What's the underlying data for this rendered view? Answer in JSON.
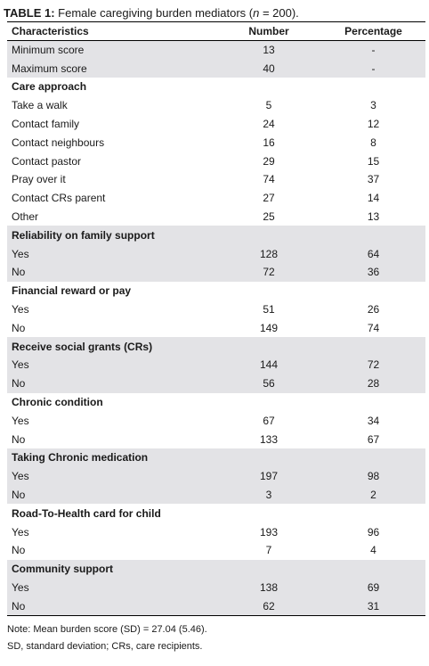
{
  "caption": {
    "label": "TABLE 1:",
    "text_before": " Female caregiving burden mediators (",
    "n_symbol": "n",
    "text_after": " = 200)."
  },
  "table": {
    "headers": [
      "Characteristics",
      "Number",
      "Percentage"
    ],
    "rows": [
      {
        "type": "data",
        "shade": true,
        "label": "Minimum score",
        "number": "13",
        "percentage": "-"
      },
      {
        "type": "data",
        "shade": true,
        "label": "Maximum score",
        "number": "40",
        "percentage": "-"
      },
      {
        "type": "section",
        "shade": false,
        "label": "Care approach"
      },
      {
        "type": "data",
        "shade": false,
        "label": "Take a walk",
        "number": "5",
        "percentage": "3"
      },
      {
        "type": "data",
        "shade": false,
        "label": "Contact family",
        "number": "24",
        "percentage": "12"
      },
      {
        "type": "data",
        "shade": false,
        "label": "Contact neighbours",
        "number": "16",
        "percentage": "8"
      },
      {
        "type": "data",
        "shade": false,
        "label": "Contact pastor",
        "number": "29",
        "percentage": "15"
      },
      {
        "type": "data",
        "shade": false,
        "label": "Pray over it",
        "number": "74",
        "percentage": "37"
      },
      {
        "type": "data",
        "shade": false,
        "label": "Contact CRs parent",
        "number": "27",
        "percentage": "14"
      },
      {
        "type": "data",
        "shade": false,
        "label": "Other",
        "number": "25",
        "percentage": "13"
      },
      {
        "type": "section",
        "shade": true,
        "label": "Reliability on family support"
      },
      {
        "type": "data",
        "shade": true,
        "label": "Yes",
        "number": "128",
        "percentage": "64"
      },
      {
        "type": "data",
        "shade": true,
        "label": "No",
        "number": "72",
        "percentage": "36"
      },
      {
        "type": "section",
        "shade": false,
        "label": "Financial reward or pay"
      },
      {
        "type": "data",
        "shade": false,
        "label": "Yes",
        "number": "51",
        "percentage": "26"
      },
      {
        "type": "data",
        "shade": false,
        "label": "No",
        "number": "149",
        "percentage": "74"
      },
      {
        "type": "section",
        "shade": true,
        "label": "Receive social grants (CRs)"
      },
      {
        "type": "data",
        "shade": true,
        "label": "Yes",
        "number": "144",
        "percentage": "72"
      },
      {
        "type": "data",
        "shade": true,
        "label": "No",
        "number": "56",
        "percentage": "28"
      },
      {
        "type": "section",
        "shade": false,
        "label": "Chronic condition"
      },
      {
        "type": "data",
        "shade": false,
        "label": "Yes",
        "number": "67",
        "percentage": "34"
      },
      {
        "type": "data",
        "shade": false,
        "label": "No",
        "number": "133",
        "percentage": "67"
      },
      {
        "type": "section",
        "shade": true,
        "label": "Taking Chronic medication"
      },
      {
        "type": "data",
        "shade": true,
        "label": "Yes",
        "number": "197",
        "percentage": "98"
      },
      {
        "type": "data",
        "shade": true,
        "label": "No",
        "number": "3",
        "percentage": "2"
      },
      {
        "type": "section",
        "shade": false,
        "label": "Road-To-Health card for child"
      },
      {
        "type": "data",
        "shade": false,
        "label": "Yes",
        "number": "193",
        "percentage": "96"
      },
      {
        "type": "data",
        "shade": false,
        "label": "No",
        "number": "7",
        "percentage": "4"
      },
      {
        "type": "section",
        "shade": true,
        "label": "Community support"
      },
      {
        "type": "data",
        "shade": true,
        "label": "Yes",
        "number": "138",
        "percentage": "69"
      },
      {
        "type": "data",
        "shade": true,
        "label": "No",
        "number": "62",
        "percentage": "31"
      }
    ]
  },
  "notes": [
    "Note: Mean burden score (SD) = 27.04 (5.46).",
    "SD, standard deviation; CRs, care recipients."
  ]
}
